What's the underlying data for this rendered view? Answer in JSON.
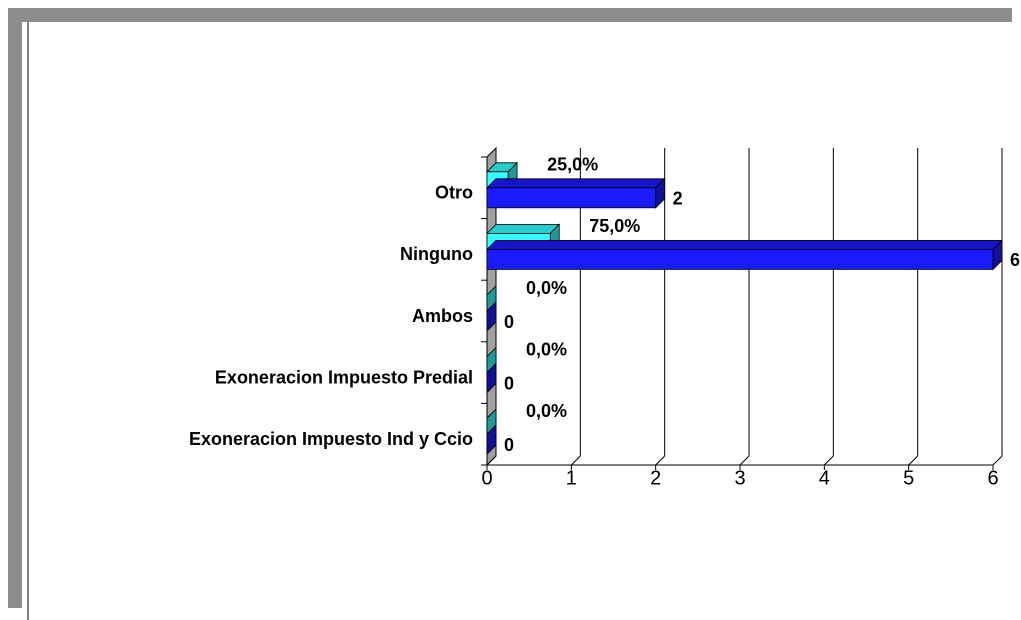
{
  "chart_data": {
    "type": "bar3d_horizontal",
    "categories": [
      "Otro",
      "Ninguno",
      "Ambos",
      "Exoneracion Impuesto Predial",
      "Exoneracion Impuesto Ind y Ccio"
    ],
    "series": [
      {
        "color": "#33ffff",
        "values": [
          0.25,
          0.75,
          0,
          0,
          0
        ],
        "value_labels": [
          "25,0%",
          "75,0%",
          "0,0%",
          "0,0%",
          "0,0%"
        ]
      },
      {
        "color": "#1a1aff",
        "values": [
          2,
          6,
          0,
          0,
          0
        ]
      }
    ],
    "xlim": [
      0,
      6
    ],
    "xticks": [
      0,
      1,
      2,
      3,
      4,
      5,
      6
    ],
    "grid": true
  }
}
